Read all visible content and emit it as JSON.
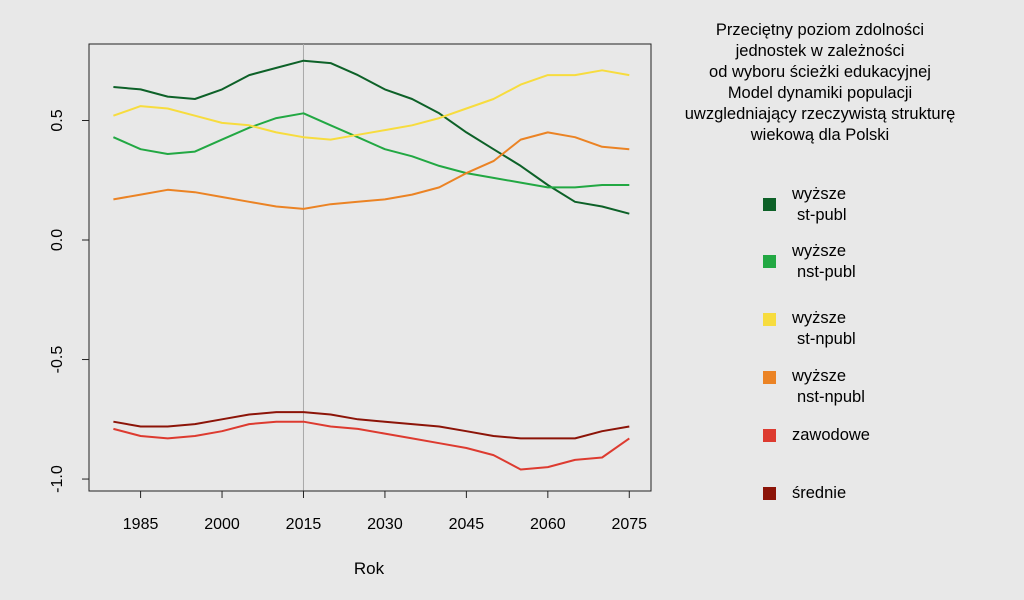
{
  "chart_data": {
    "type": "line",
    "title": [
      "Przeciętny poziom zdolności",
      "jednostek w zależności",
      "od wyboru ścieżki edukacyjnej",
      "Model dynamiki populacji",
      "uwzgledniający rzeczywistą strukturę",
      "wiekową dla Polski"
    ],
    "xlabel": "Rok",
    "ylabel": "",
    "xlim": [
      1975.5,
      2079
    ],
    "ylim": [
      -1.05,
      0.82
    ],
    "xticks": [
      1985,
      2000,
      2015,
      2030,
      2045,
      2060,
      2075
    ],
    "xtick_labels": [
      "1985",
      "2000",
      "2015",
      "2030",
      "2045",
      "2060",
      "2075"
    ],
    "yticks": [
      -1.0,
      -0.5,
      0.0,
      0.5
    ],
    "ytick_labels": [
      "-1.0",
      "-0.5",
      "0.0",
      "0.5"
    ],
    "vline": 2015,
    "series": [
      {
        "name": "wyższe st-publ",
        "label_lines": [
          "wyższe",
          "st-publ"
        ],
        "color": "#0d6128",
        "x": [
          1980,
          1985,
          1990,
          1995,
          2000,
          2005,
          2010,
          2015,
          2020,
          2025,
          2030,
          2035,
          2040,
          2045,
          2050,
          2055,
          2060,
          2065,
          2070,
          2075
        ],
        "values": [
          0.64,
          0.63,
          0.6,
          0.59,
          0.63,
          0.69,
          0.72,
          0.75,
          0.74,
          0.69,
          0.63,
          0.59,
          0.53,
          0.45,
          0.38,
          0.31,
          0.23,
          0.16,
          0.14,
          0.11
        ]
      },
      {
        "name": "wyższe nst-publ",
        "label_lines": [
          "wyższe",
          "nst-publ"
        ],
        "color": "#22a843",
        "x": [
          1980,
          1985,
          1990,
          1995,
          2000,
          2005,
          2010,
          2015,
          2020,
          2025,
          2030,
          2035,
          2040,
          2045,
          2050,
          2055,
          2060,
          2065,
          2070,
          2075
        ],
        "values": [
          0.43,
          0.38,
          0.36,
          0.37,
          0.42,
          0.47,
          0.51,
          0.53,
          0.48,
          0.43,
          0.38,
          0.35,
          0.31,
          0.28,
          0.26,
          0.24,
          0.22,
          0.22,
          0.23,
          0.23
        ]
      },
      {
        "name": "wyższe st-npubl",
        "label_lines": [
          "wyższe",
          "st-npubl"
        ],
        "color": "#f7dc3e",
        "x": [
          1980,
          1985,
          1990,
          1995,
          2000,
          2005,
          2010,
          2015,
          2020,
          2025,
          2030,
          2035,
          2040,
          2045,
          2050,
          2055,
          2060,
          2065,
          2070,
          2075
        ],
        "values": [
          0.52,
          0.56,
          0.55,
          0.52,
          0.49,
          0.48,
          0.45,
          0.43,
          0.42,
          0.44,
          0.46,
          0.48,
          0.51,
          0.55,
          0.59,
          0.65,
          0.69,
          0.69,
          0.71,
          0.69
        ]
      },
      {
        "name": "wyższe nst-npubl",
        "label_lines": [
          "wyższe",
          "nst-npubl"
        ],
        "color": "#eb8324",
        "x": [
          1980,
          1985,
          1990,
          1995,
          2000,
          2005,
          2010,
          2015,
          2020,
          2025,
          2030,
          2035,
          2040,
          2045,
          2050,
          2055,
          2060,
          2065,
          2070,
          2075
        ],
        "values": [
          0.17,
          0.19,
          0.21,
          0.2,
          0.18,
          0.16,
          0.14,
          0.13,
          0.15,
          0.16,
          0.17,
          0.19,
          0.22,
          0.28,
          0.33,
          0.42,
          0.45,
          0.43,
          0.39,
          0.38
        ]
      },
      {
        "name": "zawodowe",
        "label_lines": [
          "zawodowe"
        ],
        "color": "#dd3b30",
        "x": [
          1980,
          1985,
          1990,
          1995,
          2000,
          2005,
          2010,
          2015,
          2020,
          2025,
          2030,
          2035,
          2040,
          2045,
          2050,
          2055,
          2060,
          2065,
          2070,
          2075
        ],
        "values": [
          -0.79,
          -0.82,
          -0.83,
          -0.82,
          -0.8,
          -0.77,
          -0.76,
          -0.76,
          -0.78,
          -0.79,
          -0.81,
          -0.83,
          -0.85,
          -0.87,
          -0.9,
          -0.96,
          -0.95,
          -0.92,
          -0.91,
          -0.83
        ]
      },
      {
        "name": "średnie",
        "label_lines": [
          "średnie"
        ],
        "color": "#8c1408",
        "x": [
          1980,
          1985,
          1990,
          1995,
          2000,
          2005,
          2010,
          2015,
          2020,
          2025,
          2030,
          2035,
          2040,
          2045,
          2050,
          2055,
          2060,
          2065,
          2070,
          2075
        ],
        "values": [
          -0.76,
          -0.78,
          -0.78,
          -0.77,
          -0.75,
          -0.73,
          -0.72,
          -0.72,
          -0.73,
          -0.75,
          -0.76,
          -0.77,
          -0.78,
          -0.8,
          -0.82,
          -0.83,
          -0.83,
          -0.83,
          -0.8,
          -0.78
        ]
      }
    ]
  },
  "colors": {
    "background": "#e8e8e8",
    "plot_border": "#222222",
    "vline": "#a8a8a8"
  }
}
